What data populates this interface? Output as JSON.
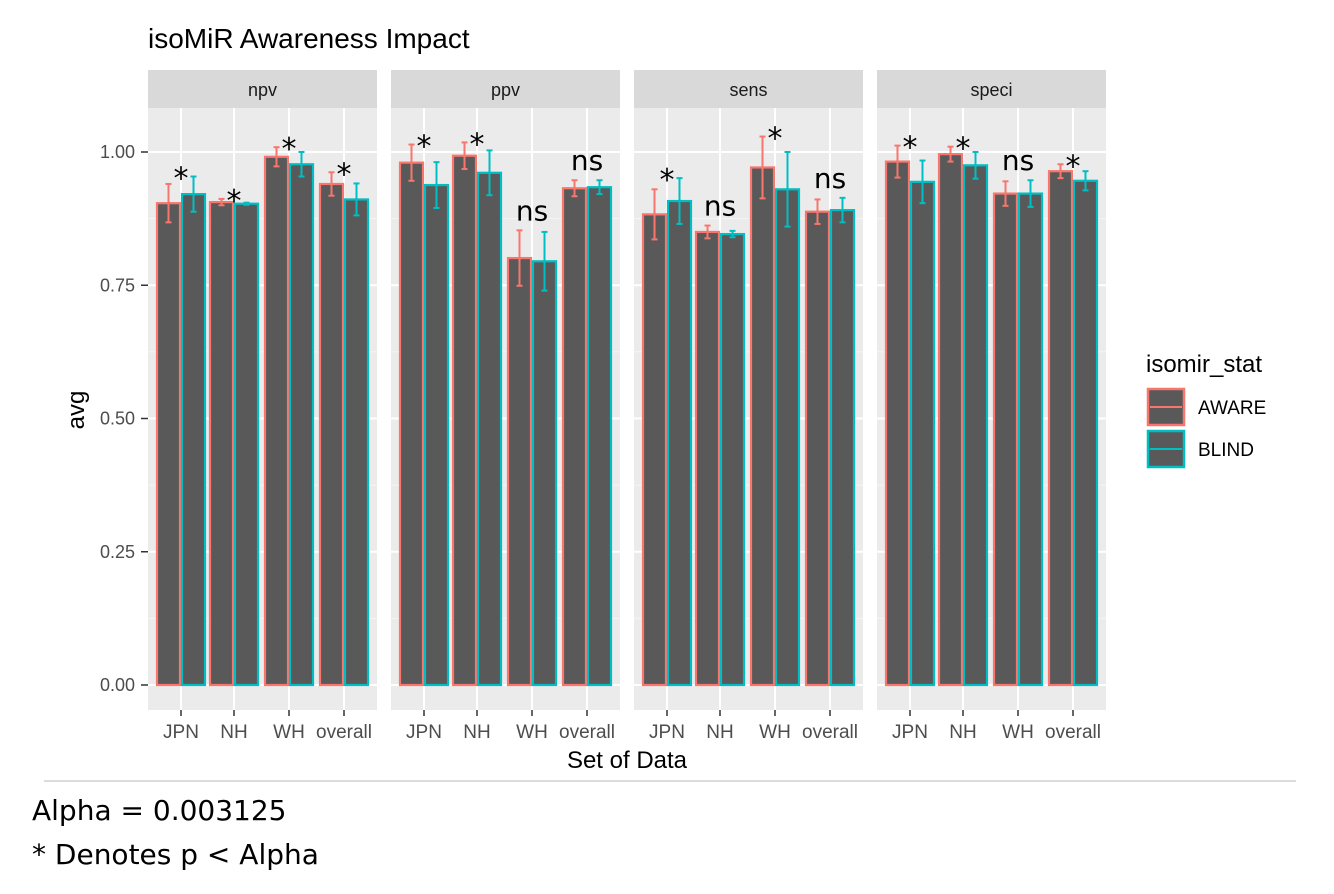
{
  "chart_data": {
    "type": "bar",
    "title": "isoMiR Awareness Impact",
    "xlabel": "Set of Data",
    "ylabel": "avg",
    "ylim": [
      0,
      1.1
    ],
    "yticks": [
      "0.00",
      "0.25",
      "0.50",
      "0.75",
      "1.00"
    ],
    "ytick_values": [
      0,
      0.25,
      0.5,
      0.75,
      1.0
    ],
    "grid": true,
    "categories": [
      "JPN",
      "NH",
      "WH",
      "overall"
    ],
    "legend": {
      "title": "isomir_stat",
      "position": "right",
      "entries": [
        {
          "name": "AWARE",
          "color": "#F8766D"
        },
        {
          "name": "BLIND",
          "color": "#00BFC4"
        }
      ]
    },
    "bar_fill": "#595959",
    "panel_bg": "#ebebeb",
    "strip_bg": "#d9d9d9",
    "panels": [
      {
        "name": "npv",
        "series": [
          {
            "name": "AWARE",
            "values": [
              0.904,
              0.906,
              0.991,
              0.94
            ],
            "errors": [
              0.036,
              0.006,
              0.018,
              0.022
            ]
          },
          {
            "name": "BLIND",
            "values": [
              0.921,
              0.903,
              0.977,
              0.911
            ],
            "errors": [
              0.033,
              0.002,
              0.023,
              0.03
            ]
          }
        ],
        "significance": [
          "*",
          "*",
          "*",
          "*"
        ]
      },
      {
        "name": "ppv",
        "series": [
          {
            "name": "AWARE",
            "values": [
              0.98,
              0.993,
              0.801,
              0.932
            ],
            "errors": [
              0.034,
              0.025,
              0.052,
              0.015
            ]
          },
          {
            "name": "BLIND",
            "values": [
              0.938,
              0.961,
              0.795,
              0.934
            ],
            "errors": [
              0.043,
              0.042,
              0.055,
              0.013
            ]
          }
        ],
        "significance": [
          "*",
          "*",
          "ns",
          "ns"
        ]
      },
      {
        "name": "sens",
        "series": [
          {
            "name": "AWARE",
            "values": [
              0.883,
              0.85,
              0.971,
              0.888
            ],
            "errors": [
              0.047,
              0.012,
              0.058,
              0.023
            ]
          },
          {
            "name": "BLIND",
            "values": [
              0.908,
              0.846,
              0.93,
              0.891
            ],
            "errors": [
              0.043,
              0.006,
              0.07,
              0.023
            ]
          }
        ],
        "significance": [
          "*",
          "ns",
          "*",
          "ns"
        ]
      },
      {
        "name": "speci",
        "series": [
          {
            "name": "AWARE",
            "values": [
              0.982,
              0.996,
              0.922,
              0.964
            ],
            "errors": [
              0.03,
              0.014,
              0.023,
              0.013
            ]
          },
          {
            "name": "BLIND",
            "values": [
              0.944,
              0.975,
              0.922,
              0.946
            ],
            "errors": [
              0.04,
              0.025,
              0.025,
              0.018
            ]
          }
        ],
        "significance": [
          "*",
          "*",
          "ns",
          "*"
        ]
      }
    ]
  },
  "notes": {
    "alpha": "Alpha = 0.003125",
    "denotes": "* Denotes p < Alpha"
  }
}
